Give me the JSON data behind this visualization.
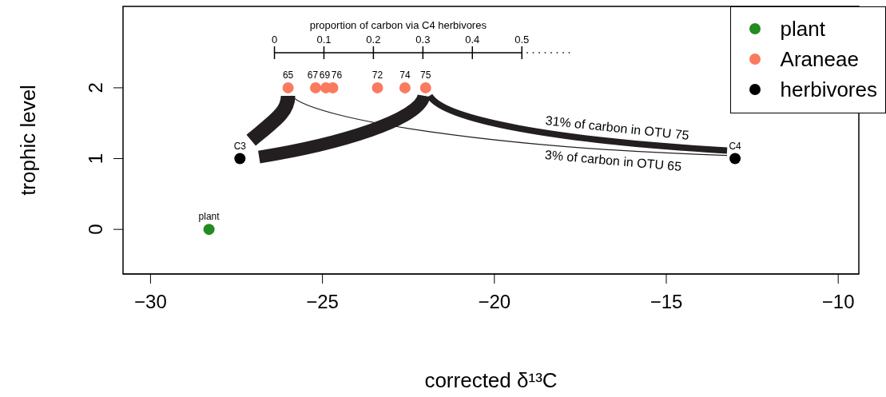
{
  "chart_data": {
    "type": "scatter",
    "xlabel": "corrected δ¹³C",
    "ylabel": "trophic level",
    "x2label": "proportion of carbon via C4 herbivores",
    "xlim": [
      -30.8,
      -9.4
    ],
    "xticks": [
      {
        "value": -30,
        "label": "−30"
      },
      {
        "value": -25,
        "label": "−25"
      },
      {
        "value": -20,
        "label": "−20"
      },
      {
        "value": -15,
        "label": "−15"
      },
      {
        "value": -10,
        "label": "−10"
      }
    ],
    "ylim": [
      -0.63,
      3.15
    ],
    "yticks": [
      0,
      1,
      2
    ],
    "x2lim": [
      -0.306,
      1.181
    ],
    "x2ticks": [
      0,
      0.1,
      0.2,
      0.3,
      0.4,
      0.5
    ],
    "legend": "top right",
    "marker": "circle",
    "series": [
      {
        "name": "plant",
        "color": "#228b22",
        "x": [
          -28.3
        ],
        "values": [
          0
        ]
      },
      {
        "name": "Araneae",
        "color": "#fa7a5e",
        "x": [
          -26.0,
          -25.2,
          -24.9,
          -24.7,
          -23.4,
          -22.6,
          -22.0
        ],
        "values": [
          2,
          2,
          2,
          2,
          2,
          2,
          2
        ]
      },
      {
        "name": "herbivores",
        "color": "#000000",
        "x": [
          -27.4,
          -13.0
        ],
        "values": [
          1,
          1
        ]
      }
    ],
    "annotations": [
      {
        "text": "plant",
        "x": -28.3,
        "y": 0
      },
      {
        "text": "65",
        "x": -26.0,
        "y": 2
      },
      {
        "text": "67",
        "x": -25.2,
        "y": 2
      },
      {
        "text": "69",
        "x": -24.9,
        "y": 2
      },
      {
        "text": "76",
        "x": -24.7,
        "y": 2
      },
      {
        "text": "72",
        "x": -23.4,
        "y": 2
      },
      {
        "text": "74",
        "x": -22.6,
        "y": 2
      },
      {
        "text": "75",
        "x": -22.0,
        "y": 2
      },
      {
        "text": "C3",
        "x": -27.4,
        "y": 1
      },
      {
        "text": "C4",
        "x": -13.0,
        "y": 1
      },
      "31% of carbon in OTU 75",
      "3% of carbon in OTU 65"
    ]
  }
}
